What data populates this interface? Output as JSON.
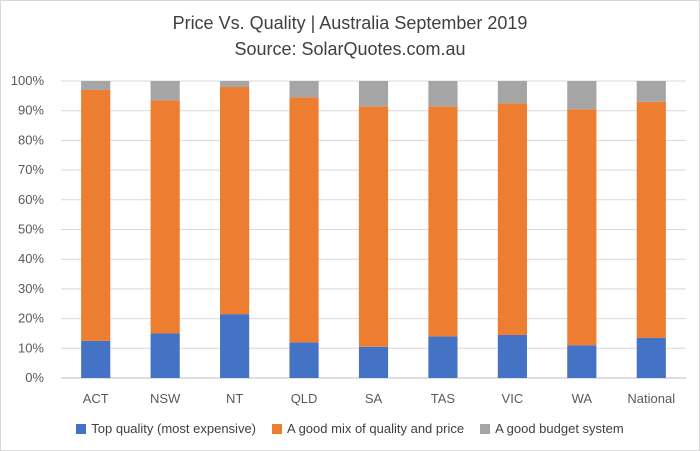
{
  "chart_data": {
    "type": "bar",
    "stacked": true,
    "title": "Price Vs. Quality | Australia September 2019",
    "subtitle": "Source: SolarQuotes.com.au",
    "categories": [
      "ACT",
      "NSW",
      "NT",
      "QLD",
      "SA",
      "TAS",
      "VIC",
      "WA",
      "National"
    ],
    "ylim": [
      0,
      100
    ],
    "yticks": [
      "0%",
      "10%",
      "20%",
      "30%",
      "40%",
      "50%",
      "60%",
      "70%",
      "80%",
      "90%",
      "100%"
    ],
    "grid": true,
    "legend_position": "bottom",
    "series": [
      {
        "name": "Top quality (most expensive)",
        "color": "#4472c4",
        "values": [
          12.5,
          15,
          21.5,
          12,
          10.5,
          14,
          14.5,
          11,
          13.5
        ]
      },
      {
        "name": "A good mix of quality and price",
        "color": "#ed7d31",
        "values": [
          84.5,
          78.5,
          76.5,
          82.5,
          81,
          77.5,
          78,
          79.5,
          79.5
        ]
      },
      {
        "name": "A good budget system",
        "color": "#a5a5a5",
        "values": [
          3,
          6.5,
          2,
          5.5,
          8.5,
          8.5,
          7.5,
          9.5,
          7
        ]
      }
    ]
  }
}
